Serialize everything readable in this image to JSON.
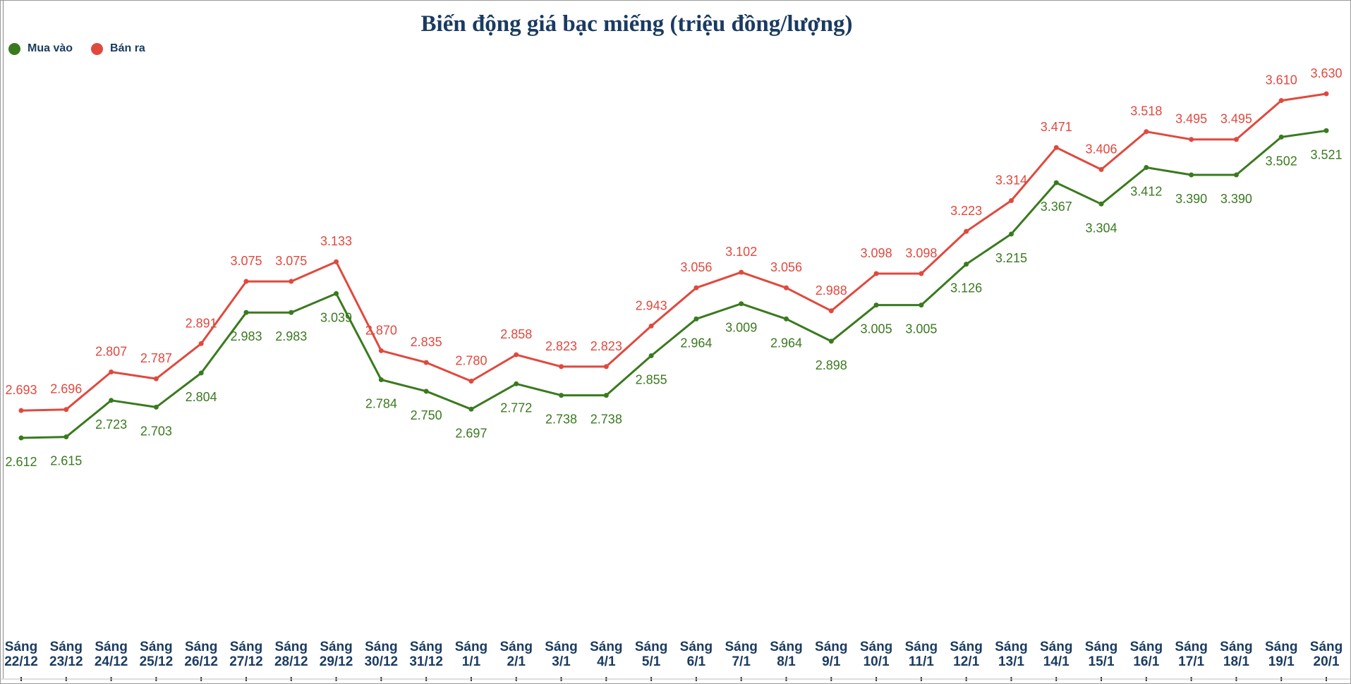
{
  "title": "Biến động giá bạc miếng (triệu đồng/lượng)",
  "colors": {
    "buy": "#3a7a1f",
    "sell": "#e0493e",
    "text": "#1a3b62"
  },
  "chart_data": {
    "type": "line",
    "title": "Biến động giá bạc miếng (triệu đồng/lượng)",
    "categories": [
      [
        "Sáng",
        "22/12"
      ],
      [
        "Sáng",
        "23/12"
      ],
      [
        "Sáng",
        "24/12"
      ],
      [
        "Sáng",
        "25/12"
      ],
      [
        "Sáng",
        "26/12"
      ],
      [
        "Sáng",
        "27/12"
      ],
      [
        "Sáng",
        "28/12"
      ],
      [
        "Sáng",
        "29/12"
      ],
      [
        "Sáng",
        "30/12"
      ],
      [
        "Sáng",
        "31/12"
      ],
      [
        "Sáng",
        "1/1"
      ],
      [
        "Sáng",
        "2/1"
      ],
      [
        "Sáng",
        "3/1"
      ],
      [
        "Sáng",
        "4/1"
      ],
      [
        "Sáng",
        "5/1"
      ],
      [
        "Sáng",
        "6/1"
      ],
      [
        "Sáng",
        "7/1"
      ],
      [
        "Sáng",
        "8/1"
      ],
      [
        "Sáng",
        "9/1"
      ],
      [
        "Sáng",
        "10/1"
      ],
      [
        "Sáng",
        "11/1"
      ],
      [
        "Sáng",
        "12/1"
      ],
      [
        "Sáng",
        "13/1"
      ],
      [
        "Sáng",
        "14/1"
      ],
      [
        "Sáng",
        "15/1"
      ],
      [
        "Sáng",
        "16/1"
      ],
      [
        "Sáng",
        "17/1"
      ],
      [
        "Sáng",
        "18/1"
      ],
      [
        "Sáng",
        "19/1"
      ],
      [
        "Sáng",
        "20/1"
      ]
    ],
    "series": [
      {
        "name": "Mua vào",
        "values": [
          2.612,
          2.615,
          2.723,
          2.703,
          2.804,
          2.983,
          2.983,
          3.039,
          2.784,
          2.75,
          2.697,
          2.772,
          2.738,
          2.738,
          2.855,
          2.964,
          3.009,
          2.964,
          2.898,
          3.005,
          3.005,
          3.126,
          3.215,
          3.367,
          3.304,
          3.412,
          3.39,
          3.39,
          3.502,
          3.521
        ],
        "labels": [
          "2.612",
          "2.615",
          "2.723",
          "2.703",
          "2.804",
          "2.983",
          "2.983",
          "3.039",
          "2.784",
          "2.750",
          "2.697",
          "2.772",
          "2.738",
          "2.738",
          "2.855",
          "2.964",
          "3.009",
          "2.964",
          "2.898",
          "3.005",
          "3.005",
          "3.126",
          "3.215",
          "3.367",
          "3.304",
          "3.412",
          "3.390",
          "3.390",
          "3.502",
          "3.521"
        ]
      },
      {
        "name": "Bán ra",
        "values": [
          2.693,
          2.696,
          2.807,
          2.787,
          2.891,
          3.075,
          3.075,
          3.133,
          2.87,
          2.835,
          2.78,
          2.858,
          2.823,
          2.823,
          2.943,
          3.056,
          3.102,
          3.056,
          2.988,
          3.098,
          3.098,
          3.223,
          3.314,
          3.471,
          3.406,
          3.518,
          3.495,
          3.495,
          3.61,
          3.63
        ],
        "labels": [
          "2.693",
          "2.696",
          "2.807",
          "2.787",
          "2.891",
          "3.075",
          "3.075",
          "3.133",
          "2.870",
          "2.835",
          "2.780",
          "2.858",
          "2.823",
          "2.823",
          "2.943",
          "3.056",
          "3.102",
          "3.056",
          "2.988",
          "3.098",
          "3.098",
          "3.223",
          "3.314",
          "3.471",
          "3.406",
          "3.518",
          "3.495",
          "3.495",
          "3.610",
          "3.630"
        ]
      }
    ],
    "legend_position": "top-left",
    "grid": false
  }
}
